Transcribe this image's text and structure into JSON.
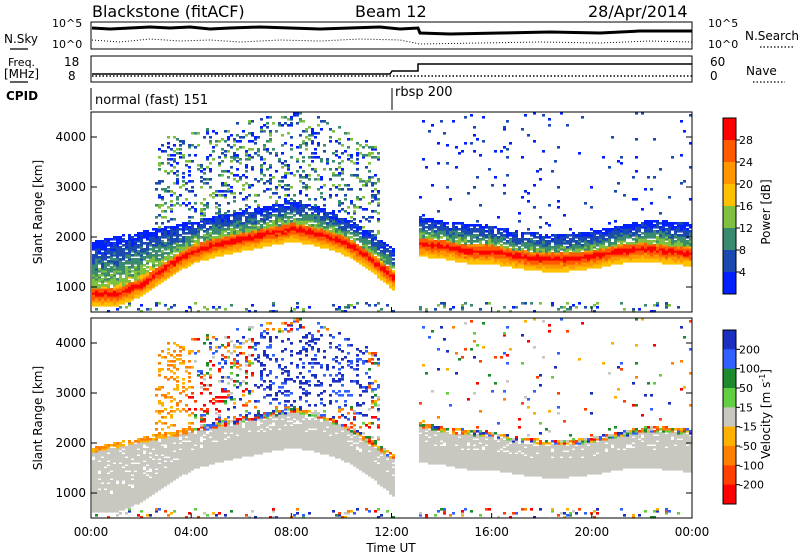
{
  "header": {
    "station": "Blackstone (fitACF)",
    "beam": "Beam 12",
    "date": "28/Apr/2014"
  },
  "noise_panel": {
    "left_label": "N.Sky",
    "right_label": "N.Search",
    "left_ticks": [
      "10^5",
      "10^0"
    ],
    "right_ticks": [
      "10^5",
      "10^0"
    ]
  },
  "freq_panel": {
    "left_label_line1": "Freq.",
    "left_label_line2": "[MHz]",
    "right_label": "Nave",
    "left_ticks": [
      "18",
      "8"
    ],
    "right_ticks": [
      "60",
      "0"
    ]
  },
  "cpid_panel": {
    "label": "CPID",
    "modes": [
      {
        "label": "normal (fast) 151",
        "start_hour": 0.0
      },
      {
        "label": "rbsp 200",
        "start_hour": 12.0
      }
    ]
  },
  "axes": {
    "xlabel": "Time UT",
    "ylabel_power": "Slant Range [km]",
    "ylabel_velocity": "Slant Range [km]",
    "x_ticks": [
      "00:00",
      "04:00",
      "08:00",
      "12:00",
      "16:00",
      "20:00",
      "00:00"
    ],
    "y_ticks": [
      "1000",
      "2000",
      "3000",
      "4000"
    ]
  },
  "colorbars": {
    "power": {
      "label": "Power [dB]",
      "ticks": [
        "28",
        "24",
        "20",
        "16",
        "12",
        "8",
        "4"
      ],
      "colors": [
        "#ff0000",
        "#ff5a00",
        "#ff9600",
        "#ffc000",
        "#7fc040",
        "#3a8a70",
        "#1a4ab0",
        "#0020ff"
      ]
    },
    "velocity": {
      "label": "Velocity [m s",
      "label_sup": "-1",
      "label_end": "]",
      "ticks": [
        "200",
        "100",
        "50",
        "15",
        "-15",
        "-50",
        "-100",
        "-200"
      ],
      "colors": [
        "#1a2fc0",
        "#3060ff",
        "#1e8a2e",
        "#60d040",
        "#c8c8c0",
        "#ffb000",
        "#ff8000",
        "#ff4000",
        "#ff0000"
      ]
    }
  },
  "chart_data": {
    "type": "heatmap",
    "x_range_hours": [
      0,
      24
    ],
    "y_range_km": [
      500,
      4500
    ],
    "power_band": {
      "hours": [
        0,
        1,
        2,
        3,
        4,
        5,
        6,
        7,
        8,
        9,
        10,
        11,
        12.2,
        13,
        14,
        15,
        16,
        17,
        18,
        19,
        20,
        21,
        22,
        23,
        24
      ],
      "center_km": [
        850,
        850,
        1050,
        1400,
        1700,
        1850,
        1950,
        2050,
        2150,
        2050,
        1900,
        1600,
        1100,
        1850,
        1800,
        1700,
        1700,
        1600,
        1550,
        1550,
        1600,
        1700,
        1750,
        1700,
        1650
      ],
      "upper_km": [
        1900,
        2000,
        2100,
        2200,
        2300,
        2400,
        2500,
        2600,
        2700,
        2600,
        2400,
        2100,
        1700,
        2400,
        2300,
        2250,
        2200,
        2100,
        2050,
        2050,
        2100,
        2200,
        2300,
        2300,
        2250
      ]
    },
    "velocity_sign": "ground scatter (gray, ~0 m/s) in main band; positive velocities (blue) near 3000-4000 km around 07:00-11:00; negative (red/orange) near 2700-3000 km around 04:00-05:00"
  }
}
